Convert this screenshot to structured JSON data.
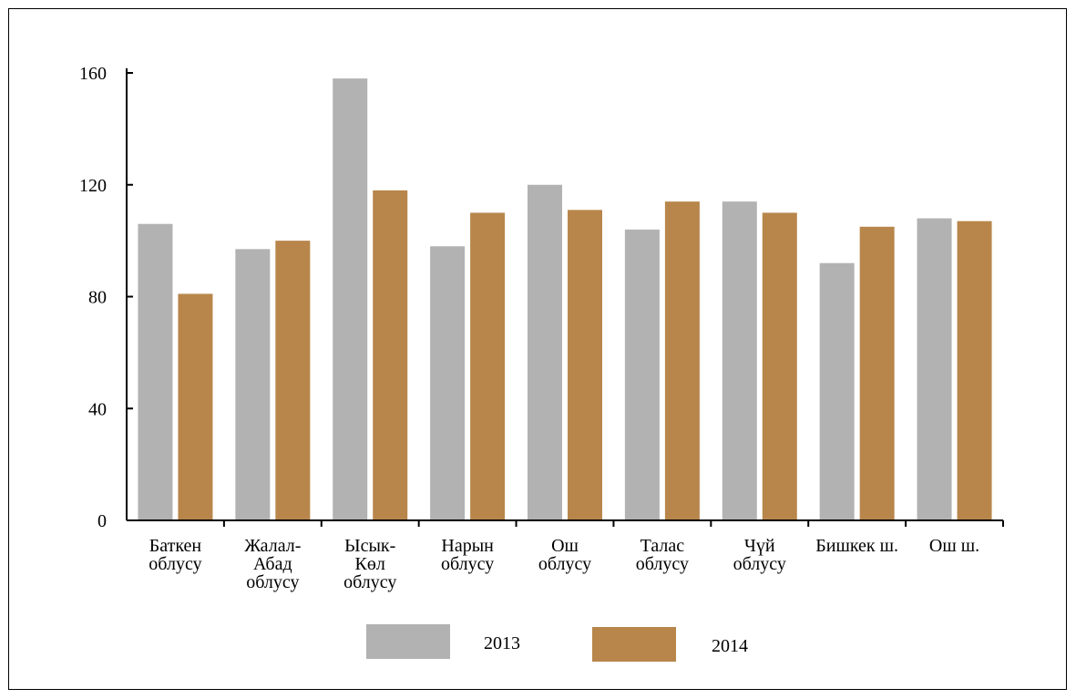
{
  "chart_data": {
    "type": "bar",
    "categories": [
      [
        "Баткен",
        "облусу"
      ],
      [
        "Жалал-",
        "Абад",
        "облусу"
      ],
      [
        "Ысык-",
        "Көл",
        "облусу"
      ],
      [
        "Нарын",
        "облусу"
      ],
      [
        "Ош",
        "облусу"
      ],
      [
        "Талас",
        "облусу"
      ],
      [
        "Чүй",
        "облусу"
      ],
      [
        "Бишкек ш."
      ],
      [
        "Ош ш."
      ]
    ],
    "series": [
      {
        "name": "2013",
        "color": "#b2b2b2",
        "values": [
          106,
          97,
          158,
          98,
          120,
          104,
          114,
          92,
          108
        ]
      },
      {
        "name": "2014",
        "color": "#b8864b",
        "values": [
          81,
          100,
          118,
          110,
          111,
          114,
          110,
          105,
          107
        ]
      }
    ],
    "ylim": [
      0,
      160
    ],
    "yticks": [
      "0",
      "40",
      "80",
      "120",
      "160"
    ],
    "grid": false,
    "legend_position": "bottom"
  }
}
